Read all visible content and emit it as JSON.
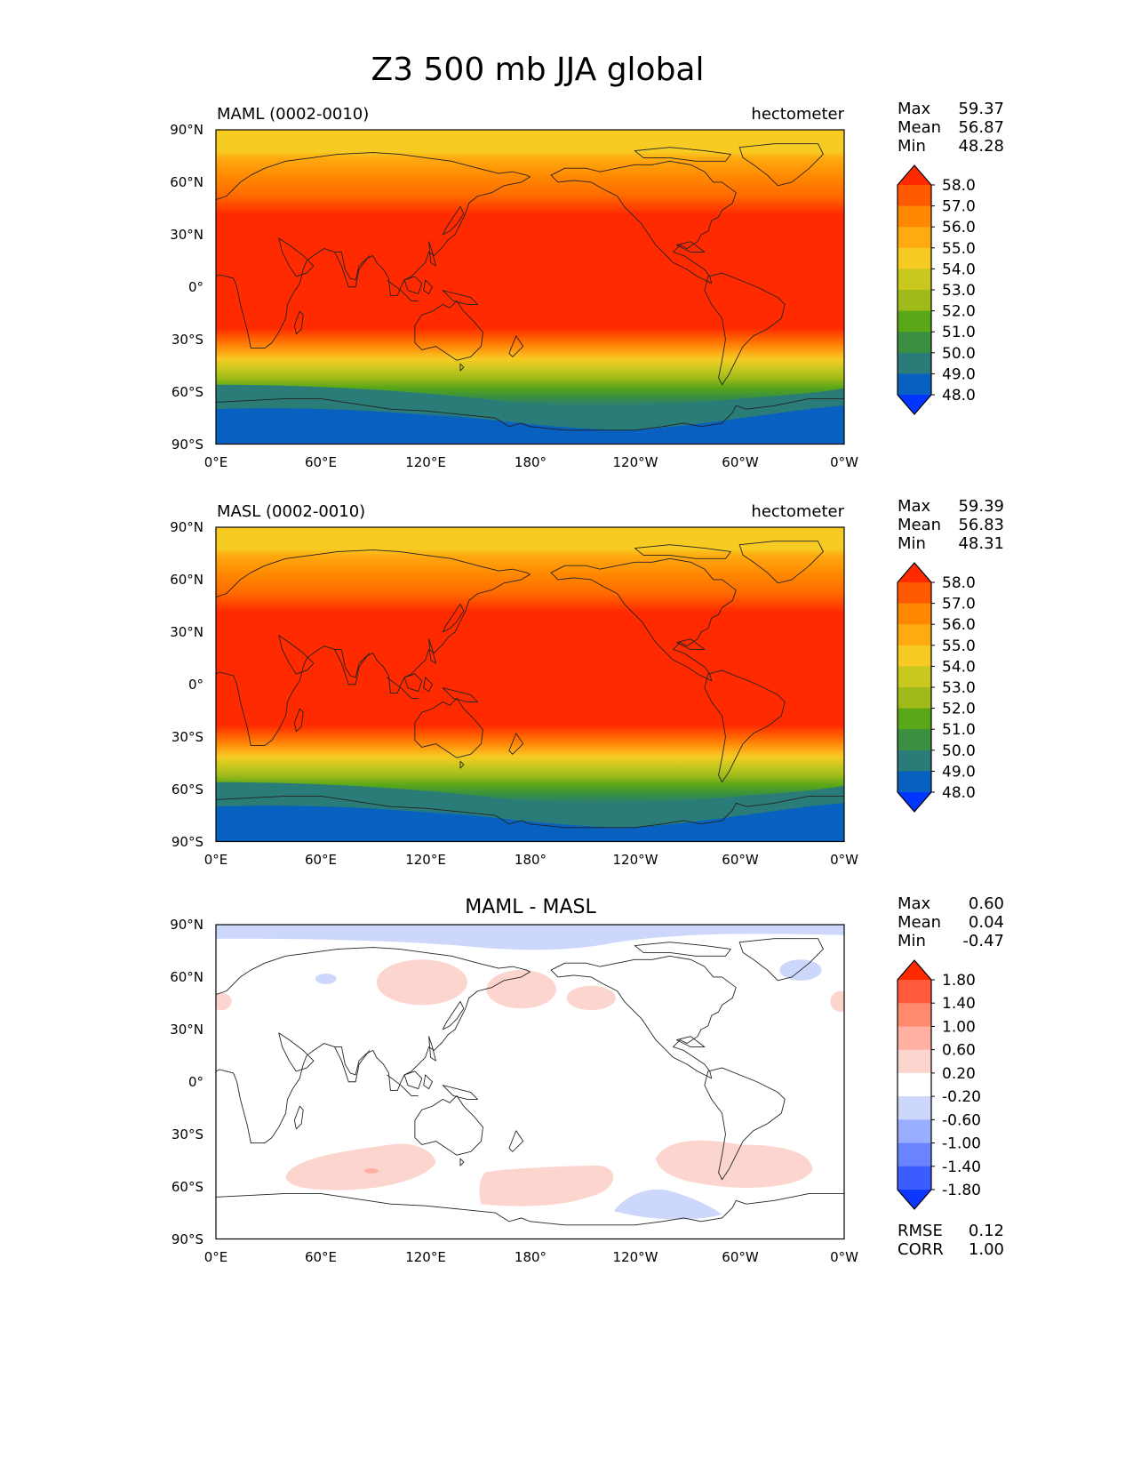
{
  "title": "Z3 500 mb JJA global",
  "axes": {
    "lat_ticks": [
      "90°N",
      "60°N",
      "30°N",
      "0°",
      "30°S",
      "60°S",
      "90°S"
    ],
    "lon_ticks": [
      "0°E",
      "60°E",
      "120°E",
      "180°",
      "120°W",
      "60°W",
      "0°W"
    ]
  },
  "panels": [
    {
      "left_title": "MAML (0002-0010)",
      "center_title": "",
      "right_title": "hectometer",
      "stats": [
        {
          "label": "Max",
          "value": "59.37"
        },
        {
          "label": "Mean",
          "value": "56.87"
        },
        {
          "label": "Min",
          "value": "48.28"
        }
      ],
      "bottom_stats": [],
      "colorbar_labels": [
        "58.0",
        "57.0",
        "56.0",
        "55.0",
        "54.0",
        "53.0",
        "52.0",
        "51.0",
        "50.0",
        "49.0",
        "48.0"
      ],
      "colorbar_colors": [
        "#ff2a00",
        "#ff5a00",
        "#ff8800",
        "#ffaa10",
        "#f7cb22",
        "#c8c81f",
        "#9fbb1a",
        "#5aa718",
        "#3a9040",
        "#2a7c78",
        "#0860c0",
        "#0036ff"
      ]
    },
    {
      "left_title": "MASL (0002-0010)",
      "center_title": "",
      "right_title": "hectometer",
      "stats": [
        {
          "label": "Max",
          "value": "59.39"
        },
        {
          "label": "Mean",
          "value": "56.83"
        },
        {
          "label": "Min",
          "value": "48.31"
        }
      ],
      "bottom_stats": [],
      "colorbar_labels": [
        "58.0",
        "57.0",
        "56.0",
        "55.0",
        "54.0",
        "53.0",
        "52.0",
        "51.0",
        "50.0",
        "49.0",
        "48.0"
      ],
      "colorbar_colors": [
        "#ff2a00",
        "#ff5a00",
        "#ff8800",
        "#ffaa10",
        "#f7cb22",
        "#c8c81f",
        "#9fbb1a",
        "#5aa718",
        "#3a9040",
        "#2a7c78",
        "#0860c0",
        "#0036ff"
      ]
    },
    {
      "left_title": "",
      "center_title": "MAML - MASL",
      "right_title": "",
      "stats": [
        {
          "label": "Max",
          "value": "0.60"
        },
        {
          "label": "Mean",
          "value": "0.04"
        },
        {
          "label": "Min",
          "value": "-0.47"
        }
      ],
      "bottom_stats": [
        {
          "label": "RMSE",
          "value": "0.12"
        },
        {
          "label": "CORR",
          "value": "1.00"
        }
      ],
      "colorbar_labels": [
        "1.80",
        "1.40",
        "1.00",
        "0.60",
        "0.20",
        "-0.20",
        "-0.60",
        "-1.00",
        "-1.40",
        "-1.80"
      ],
      "colorbar_colors": [
        "#ff2a00",
        "#ff5a3c",
        "#ff8a6e",
        "#ffb0a0",
        "#fdd5cf",
        "#ffffff",
        "#cdd6fb",
        "#9aaeff",
        "#6a84ff",
        "#3b5cff",
        "#0d36ff"
      ]
    }
  ]
}
